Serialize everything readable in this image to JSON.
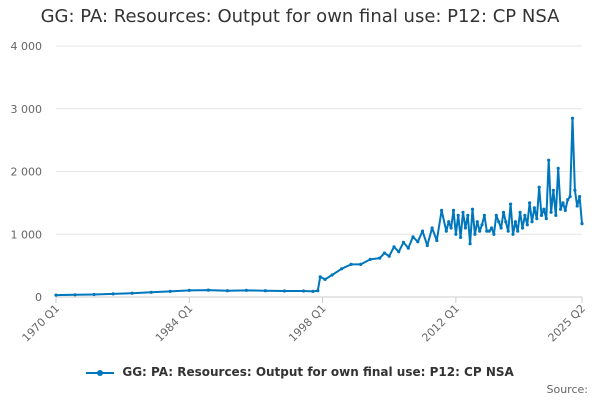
{
  "title": "GG: PA: Resources: Output for own final use: P12: CP NSA",
  "source_label": "Source:",
  "colors": {
    "series": "#0076BC",
    "grid": "#e6e6e6",
    "axis_text": "#666666"
  },
  "chart_data": {
    "type": "line",
    "title": "GG: PA: Resources: Output for own final use: P12: CP NSA",
    "xlabel": "",
    "ylabel": "",
    "ylim": [
      0,
      4000
    ],
    "y_ticks": [
      0,
      1000,
      2000,
      3000,
      4000
    ],
    "y_tick_labels": [
      "0",
      "1 000",
      "2 000",
      "3 000",
      "4 000"
    ],
    "x_range": [
      "1970 Q1",
      "2025 Q2"
    ],
    "x_tick_labels": [
      "1970 Q1",
      "1984 Q1",
      "1998 Q1",
      "2012 Q1",
      "2025 Q2"
    ],
    "grid": "horizontal",
    "legend_position": "bottom",
    "series": [
      {
        "name": "GG: PA: Resources: Output for own final use: P12: CP NSA",
        "x": [
          "1970 Q1",
          "1972 Q1",
          "1974 Q1",
          "1976 Q1",
          "1978 Q1",
          "1980 Q1",
          "1982 Q1",
          "1984 Q1",
          "1986 Q1",
          "1988 Q1",
          "1990 Q1",
          "1992 Q1",
          "1994 Q1",
          "1996 Q1",
          "1997 Q1",
          "1997 Q3",
          "1997 Q4",
          "1998 Q2",
          "1999 Q1",
          "2000 Q1",
          "2001 Q1",
          "2002 Q1",
          "2003 Q1",
          "2004 Q1",
          "2004 Q3",
          "2005 Q1",
          "2005 Q3",
          "2006 Q1",
          "2006 Q3",
          "2007 Q1",
          "2007 Q3",
          "2008 Q1",
          "2008 Q3",
          "2009 Q1",
          "2009 Q3",
          "2010 Q1",
          "2010 Q3",
          "2011 Q1",
          "2011 Q2",
          "2011 Q3",
          "2011 Q4",
          "2012 Q1",
          "2012 Q2",
          "2012 Q3",
          "2012 Q4",
          "2013 Q1",
          "2013 Q2",
          "2013 Q3",
          "2013 Q4",
          "2014 Q1",
          "2014 Q2",
          "2014 Q3",
          "2014 Q4",
          "2015 Q1",
          "2015 Q2",
          "2015 Q3",
          "2015 Q4",
          "2016 Q1",
          "2016 Q2",
          "2016 Q3",
          "2016 Q4",
          "2017 Q1",
          "2017 Q2",
          "2017 Q3",
          "2017 Q4",
          "2018 Q1",
          "2018 Q2",
          "2018 Q3",
          "2018 Q4",
          "2019 Q1",
          "2019 Q2",
          "2019 Q3",
          "2019 Q4",
          "2020 Q1",
          "2020 Q2",
          "2020 Q3",
          "2020 Q4",
          "2021 Q1",
          "2021 Q2",
          "2021 Q3",
          "2021 Q4",
          "2022 Q1",
          "2022 Q2",
          "2022 Q3",
          "2022 Q4",
          "2023 Q1",
          "2023 Q2",
          "2023 Q3",
          "2023 Q4",
          "2024 Q1",
          "2024 Q2",
          "2024 Q3",
          "2024 Q4",
          "2025 Q1",
          "2025 Q2"
        ],
        "values": [
          30,
          35,
          40,
          50,
          60,
          75,
          90,
          105,
          110,
          100,
          105,
          100,
          95,
          95,
          90,
          100,
          320,
          280,
          350,
          450,
          520,
          520,
          600,
          620,
          700,
          650,
          800,
          720,
          870,
          780,
          960,
          880,
          1050,
          820,
          1100,
          900,
          1380,
          1050,
          1200,
          1100,
          1380,
          1000,
          1300,
          950,
          1350,
          1100,
          1300,
          850,
          1400,
          1000,
          1200,
          1050,
          1150,
          1300,
          1050,
          1050,
          1100,
          1000,
          1300,
          1200,
          1100,
          1350,
          1200,
          1050,
          1480,
          1000,
          1200,
          1050,
          1350,
          1100,
          1300,
          1150,
          1500,
          1200,
          1420,
          1250,
          1750,
          1300,
          1400,
          1250,
          2180,
          1350,
          1700,
          1300,
          2050,
          1400,
          1500,
          1380,
          1550,
          1600,
          2850,
          1700,
          1450,
          1600,
          1170
        ]
      }
    ]
  }
}
